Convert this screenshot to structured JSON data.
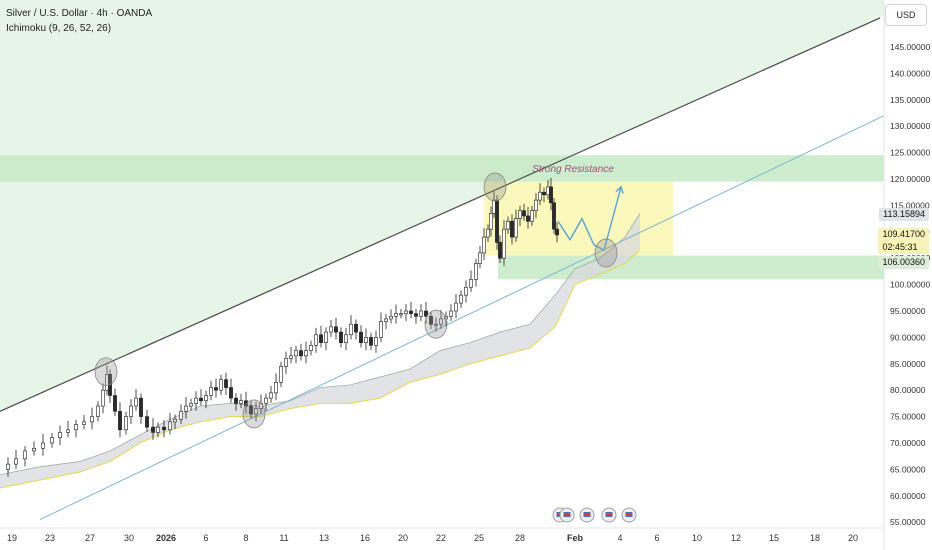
{
  "header": {
    "symbol_line": "Silver / U.S. Dollar · 4h · OANDA",
    "indicator_line": "Ichimoku (9, 26, 52, 26)"
  },
  "currency": "USD",
  "annotations": {
    "resistance_label": "Strong Resistance"
  },
  "price_tags": {
    "last": "113.15894",
    "current_price": "109.41700",
    "countdown": "02:45:31",
    "support": "106.00360"
  },
  "colors": {
    "zone_green": "#c6e9c6",
    "box_yellow": "#fbf7b4",
    "cloud_gray": "#d8dadd",
    "trend_line": "#4a4a4a",
    "lower_line": "#7fb7cf",
    "projection": "#5aa4d6",
    "resistance_text": "#a0527a"
  },
  "chart_data": {
    "type": "candlestick",
    "y_ticks": [
      "145.00000",
      "140.00000",
      "135.00000",
      "130.00000",
      "125.00000",
      "120.00000",
      "115.00000",
      "110.00000",
      "105.00000",
      "100.00000",
      "95.00000",
      "90.00000",
      "85.00000",
      "80.00000",
      "75.00000",
      "70.00000",
      "65.00000",
      "60.00000",
      "55.00000"
    ],
    "x_ticks": [
      "19",
      "23",
      "27",
      "30",
      "2026",
      "6",
      "8",
      "11",
      "13",
      "16",
      "20",
      "22",
      "25",
      "28",
      "Feb",
      "4",
      "6",
      "10",
      "12",
      "15",
      "18",
      "20"
    ],
    "ylim": [
      55,
      150
    ],
    "price_path": [
      [
        0,
        65.0
      ],
      [
        8,
        66.0
      ],
      [
        16,
        67.0
      ],
      [
        25,
        68.5
      ],
      [
        34,
        69.0
      ],
      [
        43,
        70.0
      ],
      [
        52,
        71.0
      ],
      [
        60,
        72.0
      ],
      [
        68,
        72.5
      ],
      [
        76,
        73.5
      ],
      [
        84,
        74.0
      ],
      [
        92,
        75.0
      ],
      [
        98,
        77.0
      ],
      [
        103,
        80.0
      ],
      [
        107,
        83.0
      ],
      [
        110,
        79.0
      ],
      [
        115,
        76.0
      ],
      [
        120,
        72.5
      ],
      [
        126,
        75.0
      ],
      [
        131,
        77.0
      ],
      [
        136,
        78.5
      ],
      [
        141,
        75.0
      ],
      [
        147,
        73.0
      ],
      [
        153,
        72.0
      ],
      [
        158,
        73.0
      ],
      [
        164,
        72.5
      ],
      [
        170,
        74.0
      ],
      [
        175,
        74.5
      ],
      [
        181,
        76.0
      ],
      [
        186,
        77.0
      ],
      [
        191,
        77.5
      ],
      [
        196,
        78.5
      ],
      [
        201,
        78.0
      ],
      [
        206,
        79.0
      ],
      [
        211,
        80.5
      ],
      [
        216,
        80.0
      ],
      [
        221,
        82.0
      ],
      [
        226,
        80.5
      ],
      [
        231,
        78.5
      ],
      [
        236,
        77.5
      ],
      [
        241,
        78.0
      ],
      [
        246,
        77.0
      ],
      [
        251,
        75.5
      ],
      [
        256,
        76.5
      ],
      [
        261,
        77.5
      ],
      [
        266,
        78.5
      ],
      [
        271,
        79.5
      ],
      [
        276,
        81.5
      ],
      [
        281,
        84.5
      ],
      [
        286,
        86.0
      ],
      [
        291,
        86.5
      ],
      [
        296,
        87.5
      ],
      [
        301,
        86.5
      ],
      [
        306,
        87.5
      ],
      [
        311,
        88.5
      ],
      [
        316,
        90.5
      ],
      [
        321,
        89.0
      ],
      [
        326,
        91.0
      ],
      [
        331,
        92.0
      ],
      [
        336,
        91.0
      ],
      [
        341,
        89.0
      ],
      [
        346,
        90.5
      ],
      [
        351,
        92.5
      ],
      [
        356,
        91.0
      ],
      [
        361,
        89.0
      ],
      [
        366,
        90.0
      ],
      [
        371,
        88.5
      ],
      [
        376,
        90.0
      ],
      [
        381,
        93.0
      ],
      [
        386,
        93.5
      ],
      [
        391,
        94.0
      ],
      [
        396,
        94.5
      ],
      [
        401,
        94.5
      ],
      [
        406,
        95.0
      ],
      [
        411,
        94.5
      ],
      [
        416,
        94.0
      ],
      [
        421,
        95.0
      ],
      [
        426,
        94.0
      ],
      [
        431,
        92.5
      ],
      [
        436,
        92.5
      ],
      [
        441,
        93.5
      ],
      [
        446,
        94.0
      ],
      [
        451,
        95.0
      ],
      [
        456,
        96.5
      ],
      [
        461,
        98.0
      ],
      [
        466,
        99.5
      ],
      [
        471,
        101.0
      ],
      [
        476,
        104.0
      ],
      [
        480,
        106.0
      ],
      [
        484,
        109.0
      ],
      [
        488,
        110.5
      ],
      [
        491,
        113.5
      ],
      [
        494,
        116.0
      ],
      [
        497,
        108.0
      ],
      [
        500,
        105.0
      ],
      [
        504,
        110.5
      ],
      [
        508,
        112.0
      ],
      [
        512,
        109.0
      ],
      [
        516,
        112.5
      ],
      [
        520,
        114.0
      ],
      [
        524,
        113.0
      ],
      [
        528,
        112.0
      ],
      [
        532,
        114.0
      ],
      [
        536,
        116.0
      ],
      [
        540,
        117.5
      ],
      [
        544,
        117.0
      ],
      [
        548,
        118.5
      ],
      [
        551,
        115.5
      ],
      [
        554,
        110.5
      ],
      [
        557,
        109.4
      ]
    ],
    "cloud": {
      "upper": [
        [
          0,
          64.0
        ],
        [
          40,
          65.5
        ],
        [
          80,
          66.5
        ],
        [
          110,
          68.5
        ],
        [
          140,
          71.5
        ],
        [
          170,
          74.5
        ],
        [
          200,
          77.0
        ],
        [
          230,
          77.5
        ],
        [
          260,
          77.0
        ],
        [
          290,
          78.0
        ],
        [
          320,
          80.5
        ],
        [
          350,
          81.0
        ],
        [
          380,
          82.5
        ],
        [
          410,
          84.0
        ],
        [
          440,
          87.5
        ],
        [
          470,
          89.0
        ],
        [
          500,
          91.0
        ],
        [
          530,
          92.5
        ],
        [
          555,
          98.0
        ],
        [
          575,
          103.0
        ],
        [
          600,
          105.0
        ],
        [
          625,
          109.0
        ],
        [
          640,
          113.5
        ]
      ],
      "lower": [
        [
          0,
          61.5
        ],
        [
          40,
          63.0
        ],
        [
          80,
          64.5
        ],
        [
          110,
          66.5
        ],
        [
          140,
          70.0
        ],
        [
          170,
          72.5
        ],
        [
          200,
          74.0
        ],
        [
          230,
          75.0
        ],
        [
          260,
          75.0
        ],
        [
          290,
          76.5
        ],
        [
          320,
          77.5
        ],
        [
          350,
          77.5
        ],
        [
          380,
          78.5
        ],
        [
          410,
          81.5
        ],
        [
          440,
          83.0
        ],
        [
          470,
          85.0
        ],
        [
          500,
          86.5
        ],
        [
          530,
          88.0
        ],
        [
          555,
          92.0
        ],
        [
          575,
          100.0
        ],
        [
          600,
          102.0
        ],
        [
          625,
          104.0
        ],
        [
          640,
          106.5
        ]
      ]
    },
    "resistance_zone": [
      119.5,
      124.5
    ],
    "support_zone": [
      101.0,
      105.5
    ],
    "consolidation_box": {
      "x_range": [
        484,
        673
      ],
      "y_range": [
        105.5,
        119.5
      ]
    },
    "upper_trend_line": [
      [
        0,
        76.0
      ],
      [
        880,
        150.5
      ]
    ],
    "lower_trend_line": [
      [
        40,
        55.5
      ],
      [
        884,
        132.0
      ]
    ],
    "projection_path": [
      [
        558,
        112
      ],
      [
        570,
        108.5
      ],
      [
        582,
        112.5
      ],
      [
        594,
        107.5
      ],
      [
        604,
        106.5
      ],
      [
        614,
        113.5
      ],
      [
        621,
        118.5
      ]
    ],
    "circles": [
      [
        106,
        83.5
      ],
      [
        254,
        75.5
      ],
      [
        436,
        92.5
      ],
      [
        495,
        118.5
      ],
      [
        606,
        106.0
      ]
    ],
    "bottom_icons": [
      560,
      567,
      587,
      609,
      629
    ]
  }
}
